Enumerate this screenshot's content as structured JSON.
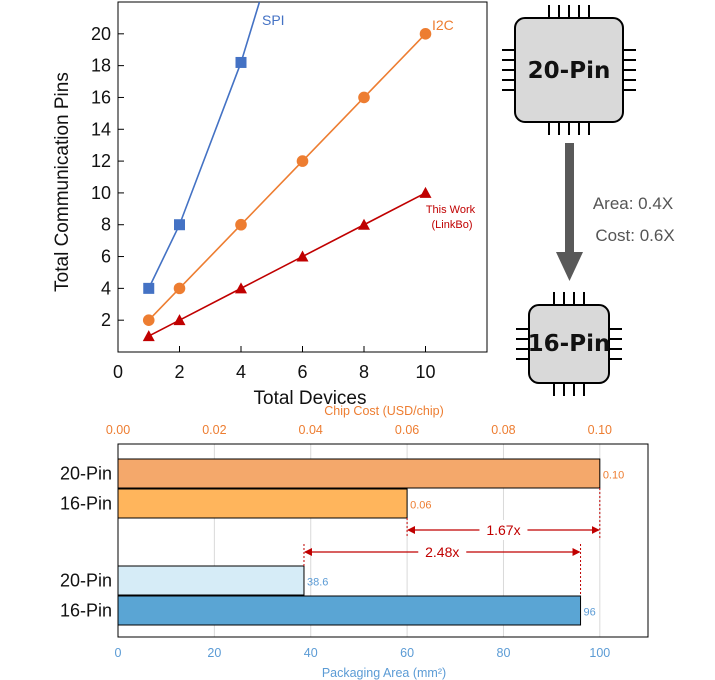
{
  "chart_data": [
    {
      "type": "line",
      "xlabel": "Total Devices",
      "ylabel": "Total Communication Pins",
      "xlim": [
        0,
        12
      ],
      "ylim": [
        0,
        22
      ],
      "xticks": [
        "0",
        "2",
        "4",
        "6",
        "8",
        "10"
      ],
      "yticks": [
        "2",
        "4",
        "6",
        "8",
        "10",
        "12",
        "14",
        "16",
        "18",
        "20"
      ],
      "grid": false,
      "series": [
        {
          "name": "SPI",
          "color": "#4472c4",
          "marker": "square",
          "x": [
            1,
            2,
            4
          ],
          "y": [
            4,
            8,
            18.2
          ],
          "line_end": [
            4.6,
            22
          ]
        },
        {
          "name": "I2C",
          "color": "#ed7d31",
          "marker": "circle",
          "x": [
            1,
            2,
            4,
            6,
            8,
            10
          ],
          "y": [
            2,
            4,
            8,
            12,
            16,
            20
          ]
        },
        {
          "name": "This Work\n(LinkBo)",
          "color": "#c00000",
          "marker": "triangle",
          "x": [
            1,
            2,
            4,
            6,
            8,
            10
          ],
          "y": [
            1,
            2,
            4,
            6,
            8,
            10
          ]
        }
      ]
    },
    {
      "type": "bar",
      "orientation": "horizontal",
      "top_axis": {
        "label": "Chip Cost (USD/chip)",
        "range": [
          0,
          0.11
        ],
        "ticks": [
          "0.00",
          "0.02",
          "0.04",
          "0.06",
          "0.08",
          "0.10"
        ],
        "color": "#ed7d31"
      },
      "bottom_axis": {
        "label": "Packaging Area (mm²)",
        "range": [
          0,
          110
        ],
        "ticks": [
          "0",
          "20",
          "40",
          "60",
          "80",
          "100"
        ],
        "color": "#5b9bd5"
      },
      "grid": true,
      "groups": [
        {
          "metric": "Chip Cost",
          "axis": "top",
          "bars": [
            {
              "category": "20-Pin",
              "value": 0.1,
              "label": "0.10",
              "color": "#f4a86b"
            },
            {
              "category": "16-Pin",
              "value": 0.06,
              "label": "0.06",
              "color": "#ffb55c"
            }
          ]
        },
        {
          "metric": "Packaging Area",
          "axis": "bottom",
          "bars": [
            {
              "category": "20-Pin",
              "value": 38.6,
              "label": "38.6",
              "color": "#d6ecf7"
            },
            {
              "category": "16-Pin",
              "value": 96,
              "label": "96",
              "color": "#5aa5d4"
            }
          ]
        }
      ],
      "annotations": [
        {
          "text": "1.67x",
          "axis": "top",
          "from": 0.06,
          "to": 0.1
        },
        {
          "text": "2.48x",
          "axis": "bottom",
          "from": 38.6,
          "to": 96
        }
      ]
    }
  ],
  "diagram": {
    "chip_top": "20-Pin",
    "chip_bottom": "16-Pin",
    "area_ratio": "Area: 0.4X",
    "cost_ratio": "Cost: 0.6X"
  }
}
